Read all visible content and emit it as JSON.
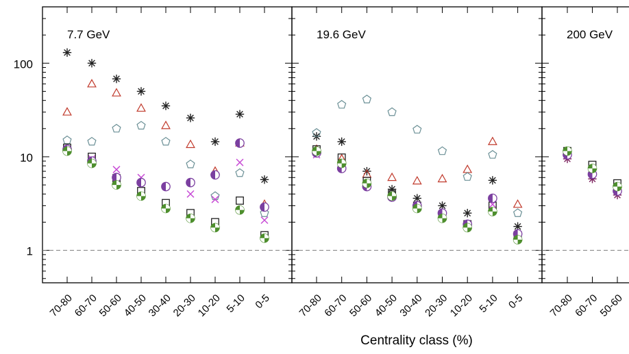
{
  "chart_data": [
    {
      "type": "scatter",
      "title": "7.7 GeV",
      "xlabel": "",
      "ylabel": "",
      "yscale": "log",
      "ylim": [
        0.45,
        400
      ],
      "categories": [
        "70-80",
        "60-70",
        "50-60",
        "40-50",
        "30-40",
        "20-30",
        "10-20",
        "5-10",
        "0-5"
      ],
      "y_ticks": [
        "1",
        "10",
        "100"
      ],
      "reference_line": 1,
      "series": [
        {
          "marker": "asterisk",
          "color": "#222222",
          "values": [
            130,
            100,
            68,
            50,
            35,
            26,
            14.5,
            28.5,
            5.7
          ]
        },
        {
          "marker": "triangle",
          "color": "#c0392b",
          "values": [
            30,
            60,
            48,
            33,
            21.5,
            13.5,
            7,
            14,
            3.1
          ]
        },
        {
          "marker": "pentagon",
          "color": "#6a8f95",
          "values": [
            15,
            14.5,
            20,
            21.5,
            14.5,
            8.3,
            3.8,
            6.7,
            2.5
          ]
        },
        {
          "marker": "cross",
          "color": "#c84dd6",
          "values": [
            12,
            9.5,
            7.3,
            6,
            4.8,
            4,
            3.5,
            8.7,
            2.1
          ]
        },
        {
          "marker": "square",
          "color": "#222222",
          "values": [
            12.5,
            10,
            5.9,
            4.3,
            3.2,
            2.5,
            2,
            3.4,
            1.45
          ]
        },
        {
          "marker": "half-circle",
          "color": "#7b3fa0",
          "values": [
            12,
            9,
            6,
            5.3,
            4.8,
            5.3,
            6.4,
            14,
            2.9
          ]
        },
        {
          "marker": "split-circle",
          "color": "#4e8f2e",
          "values": [
            11.5,
            8.5,
            5,
            3.8,
            2.8,
            2.2,
            1.75,
            2.7,
            1.35
          ]
        }
      ]
    },
    {
      "type": "scatter",
      "title": "19.6 GeV",
      "xlabel": "Centrality class (%)",
      "ylabel": "",
      "yscale": "log",
      "ylim": [
        0.45,
        400
      ],
      "categories": [
        "70-80",
        "60-70",
        "50-60",
        "40-50",
        "30-40",
        "20-30",
        "10-20",
        "5-10",
        "0-5"
      ],
      "reference_line": 1,
      "series": [
        {
          "marker": "asterisk",
          "color": "#222222",
          "values": [
            16.5,
            14.5,
            7,
            4.5,
            3.6,
            3,
            2.5,
            5.6,
            1.8
          ]
        },
        {
          "marker": "triangle",
          "color": "#c0392b",
          "values": [
            12,
            9.5,
            6.5,
            6,
            5.5,
            5.8,
            7.3,
            14.5,
            3.1
          ]
        },
        {
          "marker": "pentagon",
          "color": "#6a8f95",
          "values": [
            18,
            36,
            41,
            30,
            19.5,
            11.5,
            6.1,
            10.5,
            2.5
          ]
        },
        {
          "marker": "cross",
          "color": "#c84dd6",
          "values": [
            10.5,
            8,
            5,
            3.8,
            2.9,
            2.3,
            1.9,
            3.1,
            1.4
          ]
        },
        {
          "marker": "square",
          "color": "#222222",
          "values": [
            12,
            9.8,
            5.5,
            4,
            3,
            2.4,
            1.9,
            3,
            1.45
          ]
        },
        {
          "marker": "half-circle",
          "color": "#7b3fa0",
          "values": [
            11,
            7.5,
            4.8,
            3.7,
            3,
            2.5,
            1.9,
            3.6,
            1.5
          ]
        },
        {
          "marker": "split-circle",
          "color": "#4e8f2e",
          "values": [
            11.5,
            8.5,
            5.2,
            3.8,
            2.8,
            2.2,
            1.75,
            2.6,
            1.3
          ]
        }
      ]
    },
    {
      "type": "scatter",
      "title": "200 GeV",
      "xlabel": "",
      "ylabel": "",
      "yscale": "log",
      "ylim": [
        0.45,
        400
      ],
      "categories": [
        "70-80",
        "60-70",
        "50-60"
      ],
      "categories_visible": [
        "70-80",
        "60-70",
        "50-60",
        "4"
      ],
      "reference_line": 1,
      "series": [
        {
          "marker": "asterisk",
          "color": "#7a1f5c",
          "values": [
            9.5,
            5.8,
            3.9
          ]
        },
        {
          "marker": "square",
          "color": "#222222",
          "values": [
            11.5,
            8.2,
            5.2
          ]
        },
        {
          "marker": "half-circle",
          "color": "#7b3fa0",
          "values": [
            10.5,
            6.5,
            4.3
          ]
        },
        {
          "marker": "split-circle",
          "color": "#4e8f2e",
          "values": [
            11.5,
            7.5,
            4.8
          ]
        }
      ]
    }
  ]
}
